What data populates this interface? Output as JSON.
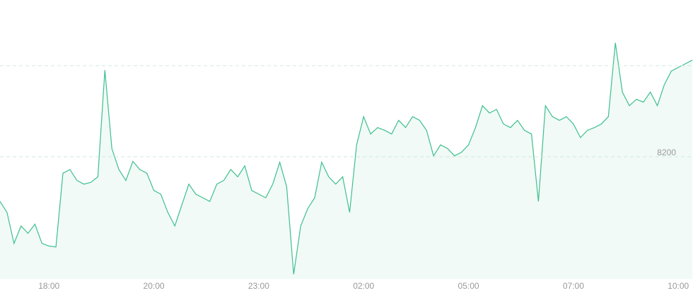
{
  "chart_data": {
    "type": "area",
    "color": "#3dbf8f",
    "fill": "#f1faf6",
    "categories": [
      null,
      null,
      null,
      null,
      null,
      null,
      null,
      "18:00",
      null,
      null,
      null,
      null,
      null,
      null,
      null,
      null,
      null,
      null,
      null,
      null,
      null,
      null,
      "20:00",
      null,
      null,
      null,
      null,
      null,
      null,
      null,
      null,
      null,
      null,
      null,
      null,
      null,
      null,
      "23:00",
      null,
      null,
      null,
      null,
      null,
      null,
      null,
      null,
      null,
      null,
      null,
      null,
      null,
      null,
      "02:00",
      null,
      null,
      null,
      null,
      null,
      null,
      null,
      null,
      null,
      null,
      null,
      null,
      null,
      null,
      "05:00",
      null,
      null,
      null,
      null,
      null,
      null,
      null,
      null,
      null,
      null,
      null,
      null,
      null,
      null,
      "07:00",
      null,
      null,
      null,
      null,
      null,
      null,
      null,
      null,
      null,
      null,
      null,
      null,
      null,
      null,
      "10:00",
      null,
      null
    ],
    "values": [
      8151,
      8139,
      8105,
      8124,
      8116,
      8126,
      8105,
      8102,
      8101,
      8182,
      8186,
      8174,
      8170,
      8172,
      8178,
      8295,
      8209,
      8186,
      8174,
      8195,
      8186,
      8182,
      8163,
      8159,
      8139,
      8124,
      8147,
      8170,
      8159,
      8155,
      8151,
      8170,
      8174,
      8186,
      8178,
      8190,
      8163,
      8159,
      8155,
      8170,
      8194,
      8167,
      8071,
      8124,
      8143,
      8155,
      8194,
      8178,
      8170,
      8178,
      8139,
      8213,
      8244,
      8225,
      8232,
      8229,
      8225,
      8240,
      8232,
      8244,
      8240,
      8229,
      8201,
      8213,
      8209,
      8201,
      8205,
      8213,
      8232,
      8256,
      8248,
      8252,
      8236,
      8232,
      8240,
      8229,
      8225,
      8151,
      8256,
      8244,
      8240,
      8244,
      8236,
      8221,
      8229,
      8232,
      8236,
      8244,
      8325,
      8271,
      8256,
      8263,
      8260,
      8271,
      8256,
      8279,
      8294,
      8298,
      8302,
      8306
    ],
    "ylim": [
      8066,
      8372
    ],
    "yticks": [
      {
        "value": 8300,
        "label": null
      },
      8200
    ],
    "grid": true
  }
}
